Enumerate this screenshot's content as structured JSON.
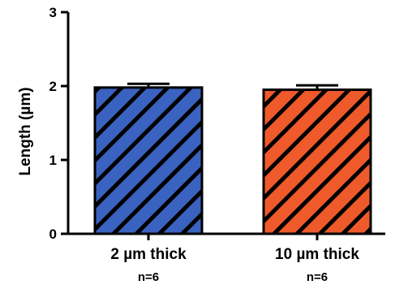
{
  "chart_data": {
    "type": "bar",
    "categories": [
      "2 µm thick",
      "10 µm thick"
    ],
    "category_notes": [
      "n=6",
      "n=6"
    ],
    "values": [
      1.98,
      1.95
    ],
    "errors": [
      0.05,
      0.06
    ],
    "colors": [
      "#3a62c0",
      "#ef5a2b"
    ],
    "hatch": "diagonal",
    "title": "",
    "xlabel": "",
    "ylabel": "Length (µm)",
    "ylim": [
      0,
      3
    ],
    "yticks": [
      "0",
      "1",
      "2",
      "3"
    ],
    "grid": false,
    "legend": "none"
  }
}
